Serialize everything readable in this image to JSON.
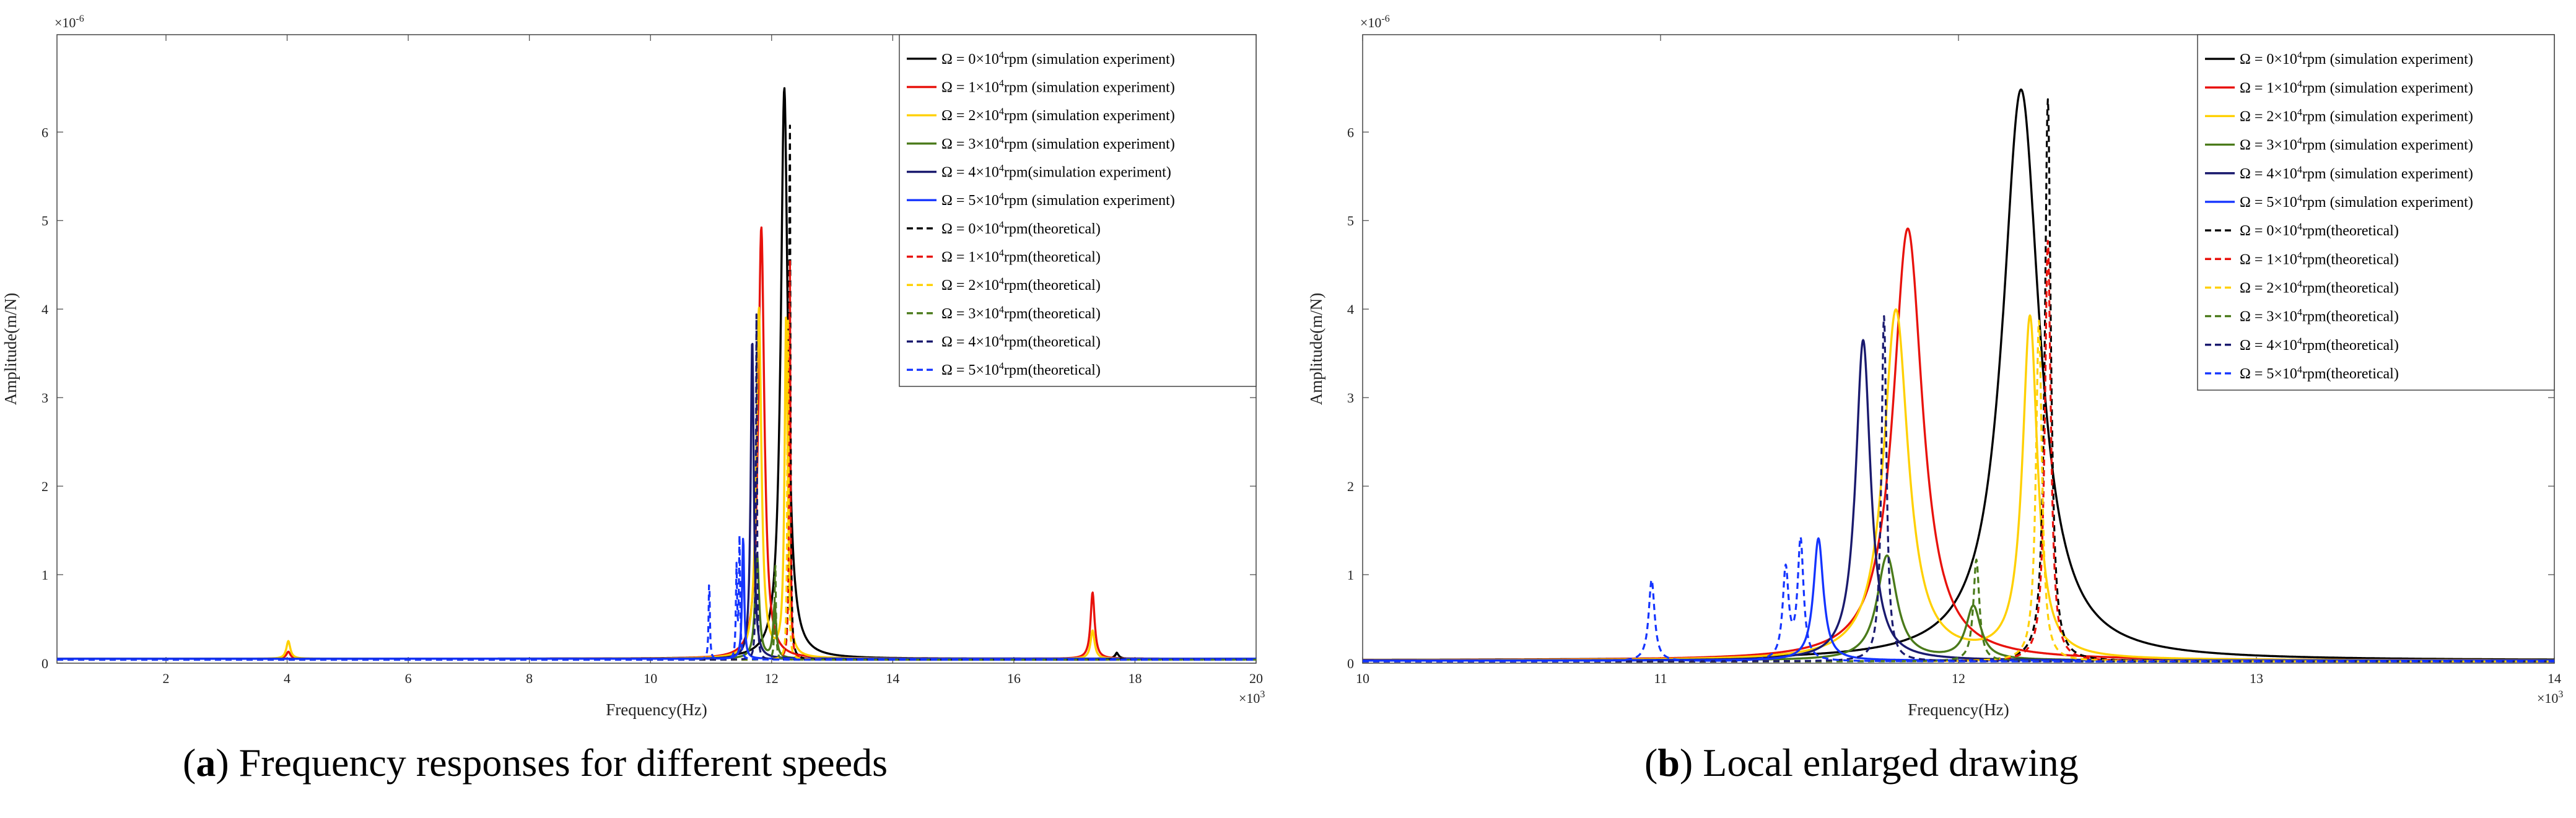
{
  "captions": [
    {
      "letter": "a",
      "text": ") Frequency responses for different speeds"
    },
    {
      "letter": "b",
      "text": ") Local enlarged drawing"
    }
  ],
  "chart_data": [
    {
      "type": "line",
      "title": "(a) Frequency responses for different speeds",
      "xlabel": "Frequency(Hz)",
      "ylabel": "Amplitude(m/N)",
      "x_exponent": "×10",
      "x_exponent_power": "3",
      "y_exponent": "×10",
      "y_exponent_power": "-6",
      "xlim": [
        0.2,
        20
      ],
      "ylim": [
        0,
        7.1
      ],
      "xticks": [
        "2",
        "4",
        "6",
        "8",
        "10",
        "12",
        "14",
        "16",
        "18",
        "20"
      ],
      "xtick_values": [
        2,
        4,
        6,
        8,
        10,
        12,
        14,
        16,
        18,
        20
      ],
      "yticks": [
        "0",
        "1",
        "2",
        "3",
        "4",
        "5",
        "6"
      ],
      "ytick_values": [
        0,
        1,
        2,
        3,
        4,
        5,
        6
      ],
      "legend_position": "top-right",
      "series": [
        {
          "name": "Ω = 0×10^4rpm (simulation experiment)",
          "color": "#000000",
          "dash": false,
          "baseline": 0.05,
          "peaks": [
            {
              "f": 12.21,
              "a": 6.45,
              "w": 0.07
            },
            {
              "f": 17.7,
              "a": 0.06,
              "w": 0.04
            }
          ]
        },
        {
          "name": "Ω = 1×10^4rpm (simulation experiment)",
          "color": "#e8120c",
          "dash": false,
          "baseline": 0.05,
          "peaks": [
            {
              "f": 11.83,
              "a": 4.88,
              "w": 0.06
            },
            {
              "f": 17.3,
              "a": 0.75,
              "w": 0.04
            },
            {
              "f": 4.02,
              "a": 0.08,
              "w": 0.04
            }
          ]
        },
        {
          "name": "Ω = 2×10^4rpm (simulation experiment)",
          "color": "#ffd000",
          "dash": false,
          "baseline": 0.05,
          "peaks": [
            {
              "f": 11.79,
              "a": 3.95,
              "w": 0.05
            },
            {
              "f": 12.24,
              "a": 3.85,
              "w": 0.03
            },
            {
              "f": 17.3,
              "a": 0.32,
              "w": 0.04
            },
            {
              "f": 4.02,
              "a": 0.2,
              "w": 0.04
            }
          ]
        },
        {
          "name": "Ω = 3×10^4rpm (simulation experiment)",
          "color": "#4a7a1a",
          "dash": false,
          "baseline": 0.05,
          "peaks": [
            {
              "f": 11.76,
              "a": 1.18,
              "w": 0.04
            },
            {
              "f": 12.05,
              "a": 0.6,
              "w": 0.03
            }
          ]
        },
        {
          "name": "Ω = 4×10^4rpm(simulation experiment)",
          "color": "#1a1a6e",
          "dash": false,
          "baseline": 0.05,
          "peaks": [
            {
              "f": 11.68,
              "a": 3.62,
              "w": 0.03
            }
          ]
        },
        {
          "name": "Ω = 5×10^4rpm (simulation experiment)",
          "color": "#1434ff",
          "dash": false,
          "baseline": 0.05,
          "peaks": [
            {
              "f": 11.53,
              "a": 1.38,
              "w": 0.02
            }
          ]
        },
        {
          "name": "Ω = 0×10^4rpm(theoretical)",
          "color": "#000000",
          "dash": true,
          "baseline": 0.04,
          "peaks": [
            {
              "f": 12.3,
              "a": 6.35,
              "w": 0.012
            },
            {
              "f": 17.7,
              "a": 0.08,
              "w": 0.03
            }
          ]
        },
        {
          "name": "Ω = 1×10^4rpm(theoretical)",
          "color": "#e8120c",
          "dash": true,
          "baseline": 0.04,
          "peaks": [
            {
              "f": 12.3,
              "a": 4.75,
              "w": 0.012
            }
          ]
        },
        {
          "name": "Ω = 2×10^4rpm(theoretical)",
          "color": "#ffd000",
          "dash": true,
          "baseline": 0.04,
          "peaks": [
            {
              "f": 12.27,
              "a": 3.85,
              "w": 0.012
            }
          ]
        },
        {
          "name": "Ω = 3×10^4rpm(theoretical)",
          "color": "#4a7a1a",
          "dash": true,
          "baseline": 0.04,
          "peaks": [
            {
              "f": 12.06,
              "a": 1.15,
              "w": 0.012
            }
          ]
        },
        {
          "name": "Ω = 4×10^4rpm(theoretical)",
          "color": "#1a1a6e",
          "dash": true,
          "baseline": 0.04,
          "peaks": [
            {
              "f": 11.75,
              "a": 3.9,
              "w": 0.01
            }
          ]
        },
        {
          "name": "Ω = 5×10^4rpm(theoretical)",
          "color": "#1434ff",
          "dash": true,
          "baseline": 0.04,
          "peaks": [
            {
              "f": 10.97,
              "a": 0.92,
              "w": 0.012
            },
            {
              "f": 11.42,
              "a": 1.02,
              "w": 0.012
            },
            {
              "f": 11.47,
              "a": 1.35,
              "w": 0.012
            }
          ]
        }
      ]
    },
    {
      "type": "line",
      "title": "(b) Local enlarged drawing",
      "xlabel": "Frequency(Hz)",
      "ylabel": "Amplitude(m/N)",
      "x_exponent": "×10",
      "x_exponent_power": "3",
      "y_exponent": "×10",
      "y_exponent_power": "-6",
      "xlim": [
        10,
        14
      ],
      "ylim": [
        0,
        7.1
      ],
      "xticks": [
        "10",
        "11",
        "12",
        "13",
        "14"
      ],
      "xtick_values": [
        10,
        11,
        12,
        13,
        14
      ],
      "yticks": [
        "0",
        "1",
        "2",
        "3",
        "4",
        "5",
        "6"
      ],
      "ytick_values": [
        0,
        1,
        2,
        3,
        4,
        5,
        6
      ],
      "legend_position": "top-right",
      "series": [
        {
          "name": "Ω = 0×10^4rpm (simulation experiment)",
          "color": "#000000",
          "dash": false,
          "baseline": 0.03,
          "peaks": [
            {
              "f": 12.21,
              "a": 6.45,
              "w": 0.075
            }
          ]
        },
        {
          "name": "Ω = 1×10^4rpm (simulation experiment)",
          "color": "#e8120c",
          "dash": false,
          "baseline": 0.03,
          "peaks": [
            {
              "f": 11.83,
              "a": 4.88,
              "w": 0.06
            }
          ]
        },
        {
          "name": "Ω = 2×10^4rpm (simulation experiment)",
          "color": "#ffd000",
          "dash": false,
          "baseline": 0.03,
          "peaks": [
            {
              "f": 11.79,
              "a": 3.95,
              "w": 0.05
            },
            {
              "f": 12.24,
              "a": 3.85,
              "w": 0.03
            }
          ]
        },
        {
          "name": "Ω = 3×10^4rpm (simulation experiment)",
          "color": "#4a7a1a",
          "dash": false,
          "baseline": 0.03,
          "peaks": [
            {
              "f": 11.76,
              "a": 1.18,
              "w": 0.04
            },
            {
              "f": 12.05,
              "a": 0.6,
              "w": 0.03
            }
          ]
        },
        {
          "name": "Ω = 4×10^4rpm (simulation experiment)",
          "color": "#1a1a6e",
          "dash": false,
          "baseline": 0.03,
          "peaks": [
            {
              "f": 11.68,
              "a": 3.62,
              "w": 0.03
            }
          ]
        },
        {
          "name": "Ω = 5×10^4rpm (simulation experiment)",
          "color": "#1434ff",
          "dash": false,
          "baseline": 0.03,
          "peaks": [
            {
              "f": 11.53,
              "a": 1.38,
              "w": 0.02
            }
          ]
        },
        {
          "name": "Ω = 0×10^4rpm(theoretical)",
          "color": "#000000",
          "dash": true,
          "baseline": 0.02,
          "peaks": [
            {
              "f": 12.3,
              "a": 6.35,
              "w": 0.012
            }
          ]
        },
        {
          "name": "Ω = 1×10^4rpm(theoretical)",
          "color": "#e8120c",
          "dash": true,
          "baseline": 0.02,
          "peaks": [
            {
              "f": 12.3,
              "a": 4.75,
              "w": 0.012
            }
          ]
        },
        {
          "name": "Ω = 2×10^4rpm(theoretical)",
          "color": "#ffd000",
          "dash": true,
          "baseline": 0.02,
          "peaks": [
            {
              "f": 12.27,
              "a": 3.85,
              "w": 0.012
            }
          ]
        },
        {
          "name": "Ω = 3×10^4rpm(theoretical)",
          "color": "#4a7a1a",
          "dash": true,
          "baseline": 0.02,
          "peaks": [
            {
              "f": 12.06,
              "a": 1.15,
              "w": 0.012
            }
          ]
        },
        {
          "name": "Ω = 4×10^4rpm(theoretical)",
          "color": "#1a1a6e",
          "dash": true,
          "baseline": 0.02,
          "peaks": [
            {
              "f": 11.75,
              "a": 3.9,
              "w": 0.01
            }
          ]
        },
        {
          "name": "Ω = 5×10^4rpm(theoretical)",
          "color": "#1434ff",
          "dash": true,
          "baseline": 0.02,
          "peaks": [
            {
              "f": 10.97,
              "a": 0.92,
              "w": 0.012
            },
            {
              "f": 11.42,
              "a": 1.02,
              "w": 0.012
            },
            {
              "f": 11.47,
              "a": 1.35,
              "w": 0.012
            }
          ]
        }
      ]
    }
  ]
}
